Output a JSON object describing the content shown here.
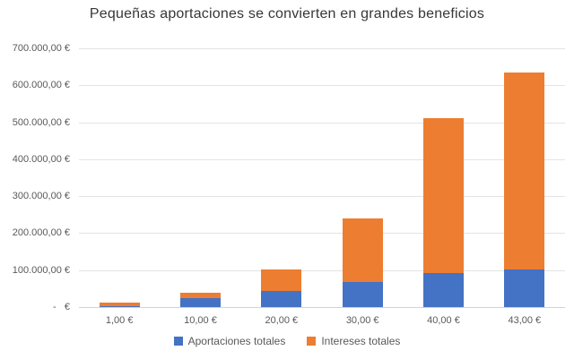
{
  "title": "Pequeñas aportaciones se convierten en grandes beneficios",
  "colors": {
    "aportaciones": "#4472C4",
    "intereses": "#ED7D31",
    "gridline": "#E3E3E3",
    "axis_line": "#D2D2D2",
    "axis_text": "#595959",
    "title_text": "#373737",
    "background": "#FFFFFF"
  },
  "y_axis": {
    "tick_labels": [
      "700.000,00 €",
      "600.000,00 €",
      "500.000,00 €",
      "400.000,00 €",
      "300.000,00 €",
      "200.000,00 €",
      "100.000,00 €",
      "-   €"
    ],
    "min": 0,
    "max": 700000,
    "step": 100000
  },
  "legend": {
    "items": [
      {
        "label": "Aportaciones totales",
        "color": "#4472C4"
      },
      {
        "label": "Intereses totales",
        "color": "#ED7D31"
      }
    ]
  },
  "chart_data": {
    "type": "bar",
    "stacked": true,
    "title": "Pequeñas aportaciones se convierten en grandes beneficios",
    "categories": [
      "1,00 €",
      "10,00 €",
      "20,00 €",
      "30,00 €",
      "40,00 €",
      "43,00 €"
    ],
    "series": [
      {
        "name": "Aportaciones totales",
        "color": "#4472C4",
        "values": [
          2400,
          24000,
          44000,
          67000,
          92000,
          102000
        ]
      },
      {
        "name": "Intereses totales",
        "color": "#ED7D31",
        "values": [
          9100,
          16000,
          59000,
          174000,
          419000,
          532000
        ]
      }
    ],
    "stack_totals": [
      11500,
      40000,
      103000,
      241000,
      511000,
      634000
    ],
    "xlabel": "",
    "ylabel": "",
    "ylim": [
      0,
      700000
    ],
    "grid": true,
    "legend_position": "bottom"
  }
}
